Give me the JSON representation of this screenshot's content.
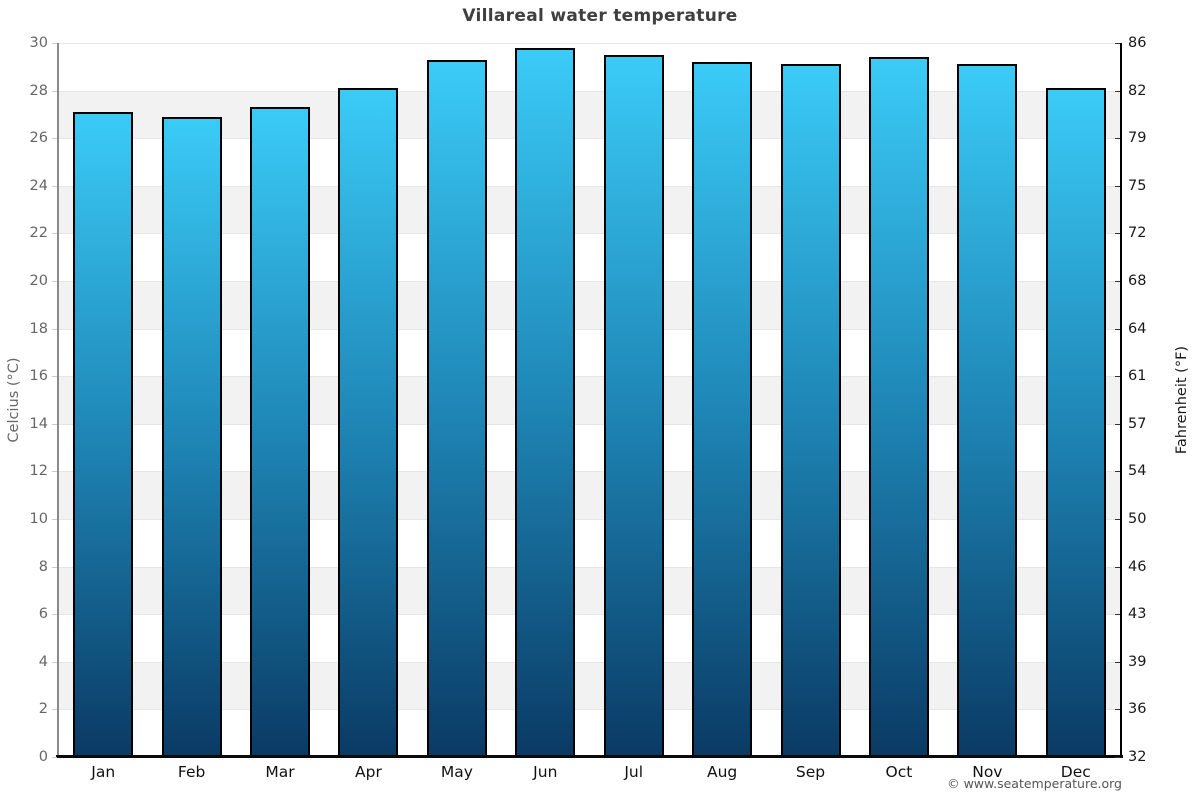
{
  "title": "Villareal water temperature",
  "watermark": "© www.seatemperature.org",
  "axes": {
    "left_title": "Celcius (°C)",
    "right_title": "Fahrenheit (°F)"
  },
  "chart_data": {
    "type": "bar",
    "title": "Villareal water temperature",
    "categories": [
      "Jan",
      "Feb",
      "Mar",
      "Apr",
      "May",
      "Jun",
      "Jul",
      "Aug",
      "Sep",
      "Oct",
      "Nov",
      "Dec"
    ],
    "values_celsius": [
      27.1,
      26.9,
      27.3,
      28.1,
      29.3,
      29.8,
      29.5,
      29.2,
      29.1,
      29.4,
      29.1,
      28.1
    ],
    "values_fahrenheit": [
      80.8,
      80.4,
      81.1,
      82.6,
      84.7,
      85.6,
      85.1,
      84.6,
      84.4,
      84.9,
      84.4,
      82.6
    ],
    "xlabel": "",
    "ylabel_left": "Celcius (°C)",
    "ylabel_right": "Fahrenheit (°F)",
    "ylim_celsius": [
      0,
      30
    ],
    "ylim_fahrenheit": [
      32,
      86
    ],
    "yticks_celsius": [
      0,
      2,
      4,
      6,
      8,
      10,
      12,
      14,
      16,
      18,
      20,
      22,
      24,
      26,
      28,
      30
    ],
    "yticks_fahrenheit": [
      32,
      36,
      39,
      43,
      46,
      50,
      54,
      57,
      61,
      64,
      68,
      72,
      75,
      79,
      82,
      86
    ],
    "grid": "alternating horizontal bands every 2°C, white and light gray, subtle gridline at each boundary",
    "legend": "none",
    "colors": {
      "bar_gradient_top": "#3bcbf7",
      "bar_gradient_mid": "#1e86b6",
      "bar_gradient_bottom": "#0a3a64",
      "bar_border": "#000000",
      "band_gray": "#f2f2f2",
      "band_white": "#ffffff",
      "gridline": "#e6e6e6",
      "left_axis_line": "#8a8a8a",
      "right_axis_line": "#000000",
      "bottom_axis_line": "#0a0a0a",
      "left_tick_text": "#666666",
      "right_tick_text": "#1a1a1a",
      "month_text": "#111111",
      "title_text": "#3f3f3f",
      "watermark_text": "#555555"
    }
  }
}
